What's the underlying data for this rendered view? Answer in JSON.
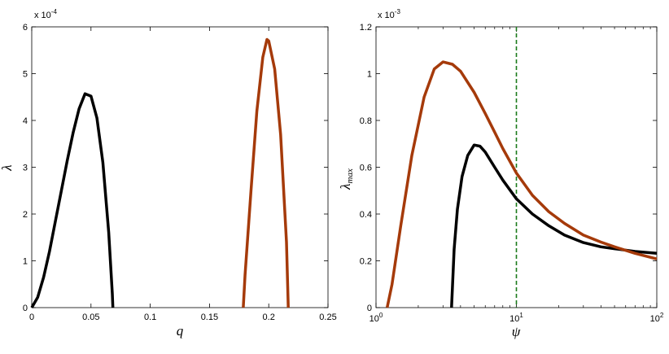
{
  "chart_data": [
    {
      "type": "line",
      "xlabel": "q",
      "ylabel": "λ",
      "y_multiplier": {
        "base": "x 10",
        "exp": "-4"
      },
      "xlim": [
        0,
        0.25
      ],
      "ylim": [
        0,
        6
      ],
      "x_ticks": [
        "0",
        "0.05",
        "0.1",
        "0.15",
        "0.2",
        "0.25"
      ],
      "y_ticks": [
        "0",
        "1",
        "2",
        "3",
        "4",
        "5",
        "6"
      ],
      "grid": false,
      "series": [
        {
          "color": "#000000",
          "points": [
            [
              0,
              0
            ],
            [
              0.005,
              0.22
            ],
            [
              0.01,
              0.65
            ],
            [
              0.015,
              1.2
            ],
            [
              0.02,
              1.85
            ],
            [
              0.025,
              2.5
            ],
            [
              0.03,
              3.15
            ],
            [
              0.035,
              3.75
            ],
            [
              0.04,
              4.25
            ],
            [
              0.045,
              4.57
            ],
            [
              0.05,
              4.52
            ],
            [
              0.055,
              4.05
            ],
            [
              0.06,
              3.1
            ],
            [
              0.065,
              1.6
            ],
            [
              0.068,
              0.3
            ],
            [
              0.0685,
              0
            ]
          ]
        },
        {
          "color": "#a53a0a",
          "points": [
            [
              0.1785,
              0
            ],
            [
              0.18,
              0.7
            ],
            [
              0.185,
              2.5
            ],
            [
              0.19,
              4.2
            ],
            [
              0.195,
              5.35
            ],
            [
              0.1985,
              5.73
            ],
            [
              0.2,
              5.7
            ],
            [
              0.205,
              5.1
            ],
            [
              0.21,
              3.7
            ],
            [
              0.215,
              1.4
            ],
            [
              0.2165,
              0
            ]
          ]
        }
      ]
    },
    {
      "type": "line",
      "xlabel": "ψ",
      "ylabel": "λmax",
      "y_multiplier": {
        "base": "x 10",
        "exp": "-3"
      },
      "xscale": "log",
      "xlim": [
        1,
        100
      ],
      "ylim": [
        0,
        1.2
      ],
      "x_ticks": [
        {
          "base": "10",
          "exp": "0"
        },
        {
          "base": "10",
          "exp": "1"
        },
        {
          "base": "10",
          "exp": "2"
        }
      ],
      "y_ticks": [
        "0",
        "0.2",
        "0.4",
        "0.6",
        "0.8",
        "1",
        "1.2"
      ],
      "grid": false,
      "vline": {
        "x": 10,
        "color": "#1a7a1a",
        "style": "dashed"
      },
      "series": [
        {
          "color": "#000000",
          "points": [
            [
              3.45,
              0
            ],
            [
              3.6,
              0.25
            ],
            [
              3.8,
              0.42
            ],
            [
              4.1,
              0.56
            ],
            [
              4.5,
              0.65
            ],
            [
              5,
              0.695
            ],
            [
              5.5,
              0.69
            ],
            [
              6,
              0.665
            ],
            [
              7,
              0.6
            ],
            [
              8,
              0.545
            ],
            [
              10,
              0.465
            ],
            [
              13,
              0.4
            ],
            [
              17,
              0.35
            ],
            [
              22,
              0.31
            ],
            [
              30,
              0.278
            ],
            [
              40,
              0.26
            ],
            [
              50,
              0.252
            ],
            [
              70,
              0.24
            ],
            [
              100,
              0.232
            ]
          ]
        },
        {
          "color": "#a53a0a",
          "points": [
            [
              1.2,
              0
            ],
            [
              1.3,
              0.1
            ],
            [
              1.5,
              0.35
            ],
            [
              1.8,
              0.65
            ],
            [
              2.2,
              0.9
            ],
            [
              2.6,
              1.02
            ],
            [
              3,
              1.05
            ],
            [
              3.5,
              1.04
            ],
            [
              4,
              1.01
            ],
            [
              5,
              0.92
            ],
            [
              6,
              0.83
            ],
            [
              7,
              0.75
            ],
            [
              8,
              0.68
            ],
            [
              10,
              0.575
            ],
            [
              13,
              0.48
            ],
            [
              17,
              0.41
            ],
            [
              22,
              0.36
            ],
            [
              30,
              0.31
            ],
            [
              40,
              0.28
            ],
            [
              50,
              0.26
            ],
            [
              70,
              0.232
            ],
            [
              100,
              0.208
            ]
          ]
        }
      ]
    }
  ]
}
